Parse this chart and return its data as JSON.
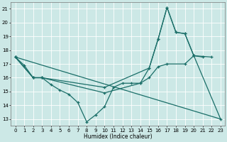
{
  "xlabel": "Humidex (Indice chaleur)",
  "bg_color": "#cce8e6",
  "line_color": "#1a6e68",
  "grid_color": "#ffffff",
  "xlim": [
    -0.5,
    23.5
  ],
  "ylim": [
    12.5,
    21.5
  ],
  "yticks": [
    13,
    14,
    15,
    16,
    17,
    18,
    19,
    20,
    21
  ],
  "xticks": [
    0,
    1,
    2,
    3,
    4,
    5,
    6,
    7,
    8,
    9,
    10,
    11,
    12,
    13,
    14,
    15,
    16,
    17,
    18,
    19,
    20,
    21,
    22,
    23
  ],
  "series1_x": [
    0,
    1,
    2,
    3,
    4,
    5,
    6,
    7,
    8,
    9,
    10,
    11,
    12,
    13,
    14,
    15,
    16,
    17,
    18,
    19,
    20,
    21
  ],
  "series1_y": [
    17.5,
    16.9,
    16.0,
    16.0,
    15.5,
    15.1,
    14.8,
    14.2,
    12.8,
    13.3,
    13.9,
    15.3,
    15.6,
    15.6,
    15.6,
    16.7,
    18.8,
    21.1,
    19.3,
    19.2,
    17.6,
    17.5
  ],
  "series2_x": [
    0,
    23
  ],
  "series2_y": [
    17.5,
    13.0
  ],
  "series3_x": [
    0,
    2,
    3,
    10,
    15,
    16,
    17,
    18,
    19,
    20,
    23
  ],
  "series3_y": [
    17.5,
    16.0,
    16.0,
    15.3,
    16.7,
    18.8,
    21.1,
    19.3,
    19.2,
    17.6,
    13.0
  ],
  "series4_x": [
    0,
    2,
    3,
    10,
    14,
    15,
    16,
    17,
    19,
    20,
    22
  ],
  "series4_y": [
    17.5,
    16.0,
    16.0,
    14.9,
    15.6,
    16.0,
    16.8,
    17.0,
    17.0,
    17.6,
    17.5
  ]
}
